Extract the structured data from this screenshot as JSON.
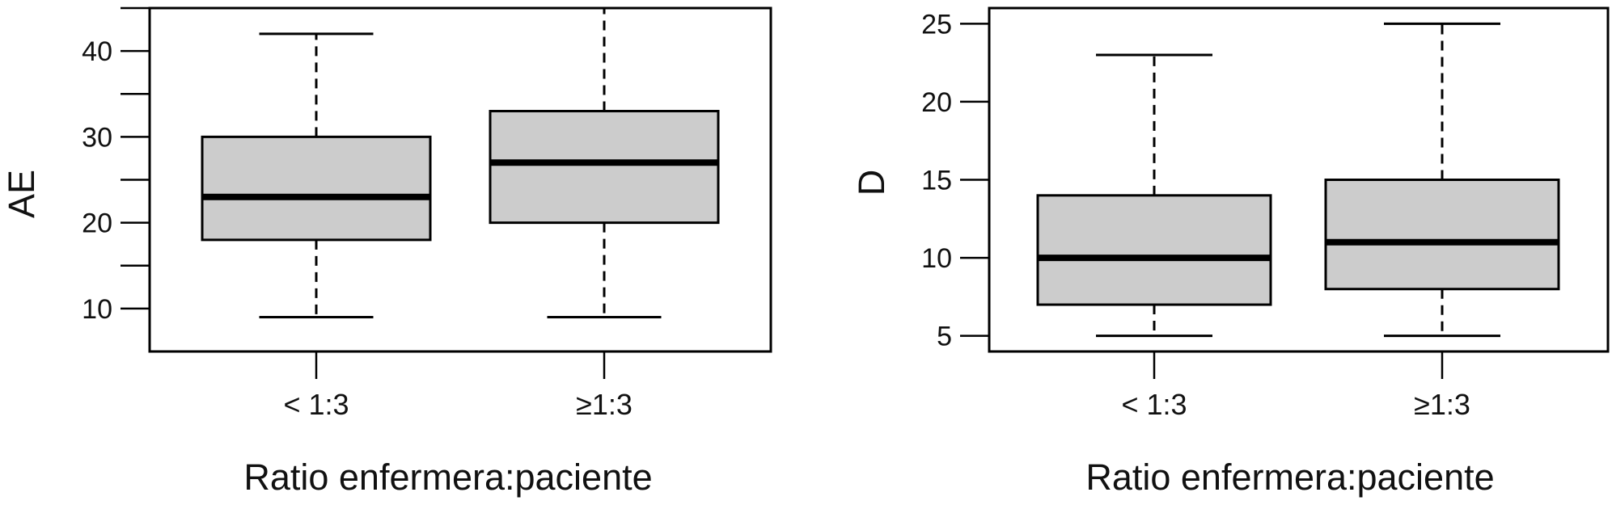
{
  "chart_data": [
    {
      "type": "boxplot",
      "title": "",
      "xlabel": "Ratio enfermera:paciente",
      "ylabel": "AE",
      "ylim": [
        5,
        45
      ],
      "yticks": [
        10,
        20,
        30,
        40
      ],
      "yticks_minor": [
        15,
        25,
        35,
        45
      ],
      "categories": [
        "< 1:3",
        "≥1:3"
      ],
      "boxes": [
        {
          "category": "< 1:3",
          "min": 9,
          "q1": 18,
          "median": 23,
          "q3": 30,
          "max": 42
        },
        {
          "category": "≥1:3",
          "min": 9,
          "q1": 20,
          "median": 27,
          "q3": 33,
          "max": 45
        }
      ],
      "box_color": "#cccccc"
    },
    {
      "type": "boxplot",
      "title": "",
      "xlabel": "Ratio enfermera:paciente",
      "ylabel": "D",
      "ylim": [
        4,
        26
      ],
      "yticks": [
        5,
        10,
        15,
        20,
        25
      ],
      "yticks_minor": [],
      "categories": [
        "< 1:3",
        "≥1:3"
      ],
      "boxes": [
        {
          "category": "< 1:3",
          "min": 5,
          "q1": 7,
          "median": 10,
          "q3": 14,
          "max": 23
        },
        {
          "category": "≥1:3",
          "min": 5,
          "q1": 8,
          "median": 11,
          "q3": 15,
          "max": 25
        }
      ],
      "box_color": "#cccccc"
    }
  ]
}
